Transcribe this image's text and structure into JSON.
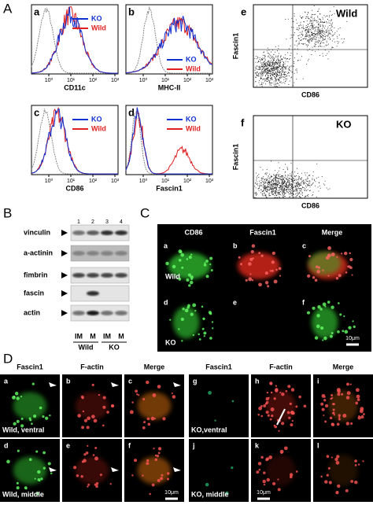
{
  "panel_a": {
    "label": "A",
    "tick_labels": [
      "10⁰",
      "10¹",
      "10²",
      "10³"
    ],
    "histograms": [
      {
        "letter": "a",
        "xlabel": "CD11c",
        "legend": [
          "KO",
          "Wild"
        ]
      },
      {
        "letter": "b",
        "xlabel": "MHC-II",
        "legend": [
          "KO",
          "Wild"
        ]
      },
      {
        "letter": "c",
        "xlabel": "CD86",
        "legend": [
          "KO",
          "Wild"
        ]
      },
      {
        "letter": "d",
        "xlabel": "Fascin1",
        "legend": [
          "KO",
          "Wild"
        ]
      }
    ],
    "scatters": [
      {
        "letter": "e",
        "condition": "Wild",
        "xlabel": "CD86",
        "ylabel": "Fascin1"
      },
      {
        "letter": "f",
        "condition": "KO",
        "xlabel": "CD86",
        "ylabel": "Fascin1"
      }
    ]
  },
  "panel_b": {
    "label": "B",
    "lanes": [
      "1",
      "2",
      "3",
      "4"
    ],
    "rows": [
      "vinculin",
      "a-actinin",
      "fimbrin",
      "fascin",
      "actin"
    ],
    "conditions": [
      "IM",
      "M",
      "IM",
      "M"
    ],
    "groups": [
      "Wild",
      "KO"
    ]
  },
  "panel_c": {
    "label": "C",
    "columns": [
      "CD86",
      "Fascin1",
      "Merge"
    ],
    "letters": [
      "a",
      "b",
      "c",
      "d",
      "e",
      "f"
    ],
    "rows": [
      "Wild",
      "KO"
    ],
    "scale_bar": "10μm"
  },
  "panel_d": {
    "label": "D",
    "columns": [
      "Fascin1",
      "F-actin",
      "Merge",
      "Fascin1",
      "F-actin",
      "Merge"
    ],
    "letters": [
      "a",
      "b",
      "c",
      "d",
      "e",
      "f",
      "g",
      "h",
      "i",
      "j",
      "k",
      "l"
    ],
    "captions": [
      "Wild, ventral",
      "Wild, middle",
      "KO,ventral",
      "KO, middle"
    ],
    "scale_bars": [
      "10μm",
      "10μm"
    ]
  }
}
